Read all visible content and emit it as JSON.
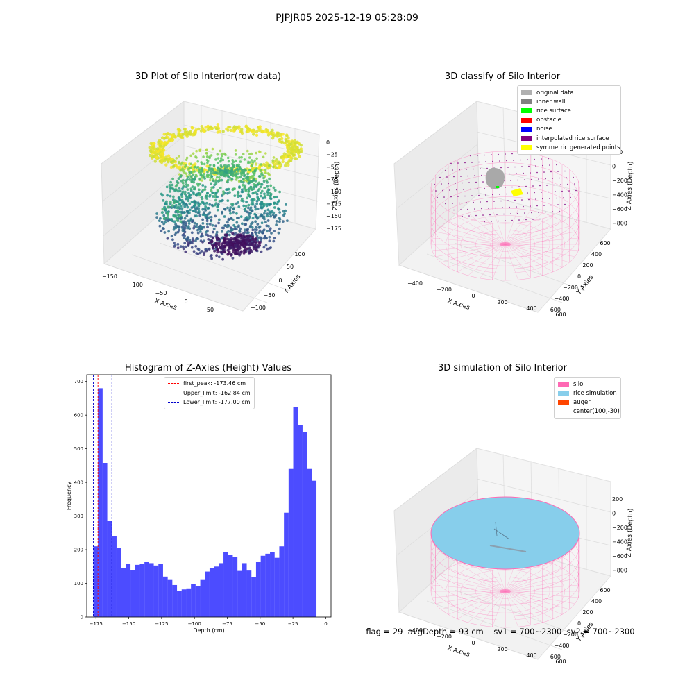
{
  "suptitle": "PJPJR05 2025-12-19 05:28:09",
  "panels": {
    "raw": {
      "title": "3D Plot of Silo Interior(row data)",
      "x_label": "X Axies",
      "y_label": "Y Axies",
      "z_label": "Z Axies (Depth)",
      "x_ticks": [
        "−150",
        "−100",
        "−50",
        "0",
        "50"
      ],
      "y_ticks": [
        "−100",
        "−50",
        "0",
        "50",
        "100"
      ],
      "z_ticks": [
        "0",
        "−25",
        "−50",
        "−75",
        "−100",
        "−125",
        "−150",
        "−175"
      ]
    },
    "classify": {
      "title": "3D classify of Silo Interior",
      "x_label": "X Axies",
      "y_label": "Y Axies",
      "z_label": "Z Axies (Depth)",
      "x_ticks": [
        "−400",
        "−200",
        "0",
        "200",
        "400",
        "600"
      ],
      "y_ticks": [
        "−600",
        "−400",
        "−200",
        "0",
        "200",
        "400",
        "600"
      ],
      "z_ticks": [
        "200",
        "0",
        "−200",
        "−400",
        "−600",
        "−800"
      ],
      "legend": [
        {
          "label": "original data",
          "color": "#b0b0b0"
        },
        {
          "label": "inner wall",
          "color": "#808080"
        },
        {
          "label": "rice surface",
          "color": "#00ff00"
        },
        {
          "label": "obstacle",
          "color": "#ff0000"
        },
        {
          "label": "noise",
          "color": "#0000ff"
        },
        {
          "label": "interpolated rice surface",
          "color": "#800080"
        },
        {
          "label": "symmetric generated points",
          "color": "#ffff00"
        }
      ]
    },
    "simulation": {
      "title": "3D simulation of Silo Interior",
      "x_label": "X Axies",
      "y_label": "Y Axies",
      "z_label": "Z Axies (Depth)",
      "x_ticks": [
        "−400",
        "−200",
        "0",
        "200",
        "400",
        "600"
      ],
      "y_ticks": [
        "−600",
        "−400",
        "−200",
        "0",
        "200",
        "400",
        "600"
      ],
      "z_ticks": [
        "200",
        "0",
        "−200",
        "−400",
        "−600",
        "−800"
      ],
      "legend": [
        {
          "label": "silo",
          "color": "#ff69b4"
        },
        {
          "label": "rice simulation",
          "color": "#87ceeb"
        },
        {
          "label": "auger",
          "color": "#ff4500"
        },
        {
          "label": "center(100,-30)",
          "color": ""
        }
      ]
    }
  },
  "footer": {
    "flag": "flag = 29",
    "avg_depth": "avgDepth = 93 cm",
    "sv1": "sv1 = 700~2300",
    "sv2": "sv2 = 700~2300"
  },
  "chart_data": [
    {
      "type": "histogram",
      "title": "Histogram of Z-Axies (Height) Values",
      "xlabel": "Depth (cm)",
      "ylabel": "Frequency",
      "bar_color": "#0000ff",
      "bar_alpha": 0.7,
      "xlim": [
        -182,
        4
      ],
      "ylim": [
        0,
        720
      ],
      "x_ticks": [
        -175,
        -150,
        -125,
        -100,
        -75,
        -50,
        -25,
        0
      ],
      "y_ticks": [
        0,
        100,
        200,
        300,
        400,
        500,
        600,
        700
      ],
      "bin_start": -177.0,
      "bin_width": 3.54,
      "counts": [
        210,
        680,
        458,
        286,
        240,
        205,
        145,
        158,
        140,
        155,
        157,
        163,
        160,
        153,
        158,
        120,
        110,
        95,
        78,
        82,
        85,
        98,
        92,
        110,
        135,
        145,
        150,
        160,
        193,
        185,
        178,
        137,
        160,
        138,
        118,
        163,
        182,
        188,
        192,
        176,
        210,
        310,
        440,
        625,
        570,
        550,
        440,
        405
      ],
      "vlines": [
        {
          "x": -173.46,
          "label": "first_peak: -173.46 cm",
          "color": "#ff0000"
        },
        {
          "x": -162.84,
          "label": "Upper_limit: -162.84 cm",
          "color": "#0000cc"
        },
        {
          "x": -177.0,
          "label": "Lower_limit: -177.00 cm",
          "color": "#0000cc"
        }
      ]
    }
  ]
}
